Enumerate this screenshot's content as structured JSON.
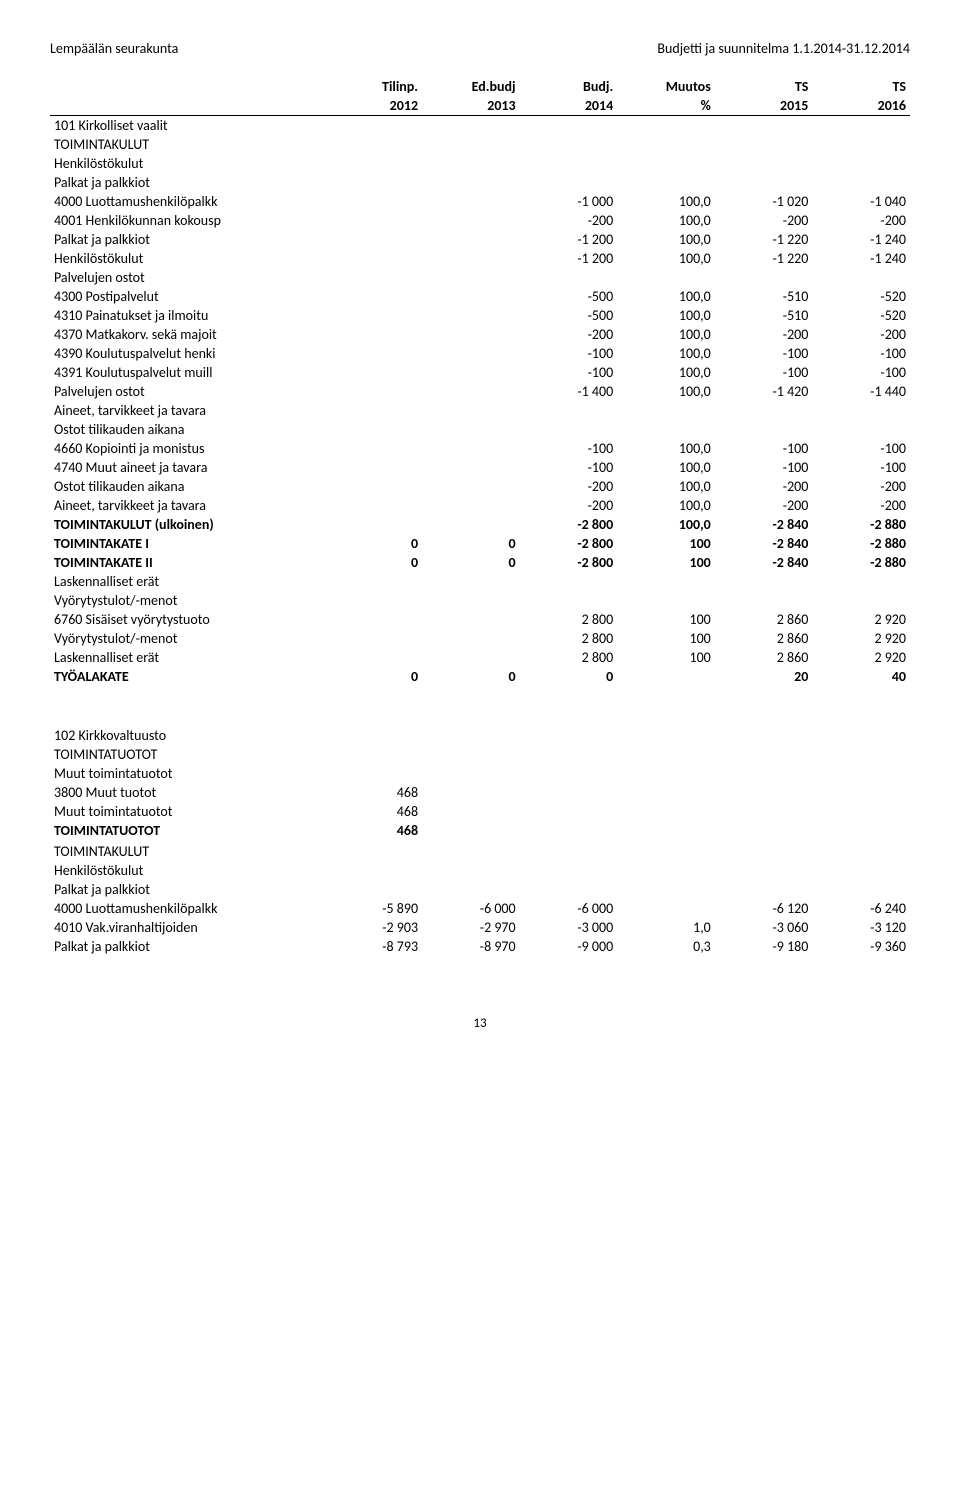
{
  "doc": {
    "org": "Lempäälän seurakunta",
    "title": "Budjetti ja suunnitelma 1.1.2014-31.12.2014",
    "page": "13"
  },
  "columns": {
    "h1": [
      "Tilinp.",
      "Ed.budj",
      "Budj.",
      "Muutos",
      "TS",
      "TS"
    ],
    "h2": [
      "2012",
      "2013",
      "2014",
      "%",
      "2015",
      "2016"
    ]
  },
  "rows1": [
    {
      "label": "101 Kirkolliset vaalit",
      "vals": [
        "",
        "",
        "",
        "",
        "",
        ""
      ],
      "bold": false
    },
    {
      "label": "TOIMINTAKULUT",
      "vals": [
        "",
        "",
        "",
        "",
        "",
        ""
      ]
    },
    {
      "label": "Henkilöstökulut",
      "vals": [
        "",
        "",
        "",
        "",
        "",
        ""
      ]
    },
    {
      "label": "Palkat ja palkkiot",
      "vals": [
        "",
        "",
        "",
        "",
        "",
        ""
      ]
    },
    {
      "label": "4000 Luottamushenkilöpalkk",
      "vals": [
        "",
        "",
        "-1 000",
        "100,0",
        "-1 020",
        "-1 040"
      ]
    },
    {
      "label": "4001 Henkilökunnan kokousp",
      "vals": [
        "",
        "",
        "-200",
        "100,0",
        "-200",
        "-200"
      ]
    },
    {
      "label": "Palkat ja palkkiot",
      "vals": [
        "",
        "",
        "-1 200",
        "100,0",
        "-1 220",
        "-1 240"
      ]
    },
    {
      "label": "Henkilöstökulut",
      "vals": [
        "",
        "",
        "-1 200",
        "100,0",
        "-1 220",
        "-1 240"
      ]
    },
    {
      "label": "Palvelujen ostot",
      "vals": [
        "",
        "",
        "",
        "",
        "",
        ""
      ]
    },
    {
      "label": "4300 Postipalvelut",
      "vals": [
        "",
        "",
        "-500",
        "100,0",
        "-510",
        "-520"
      ]
    },
    {
      "label": "4310 Painatukset ja ilmoitu",
      "vals": [
        "",
        "",
        "-500",
        "100,0",
        "-510",
        "-520"
      ]
    },
    {
      "label": "4370 Matkakorv. sekä majoit",
      "vals": [
        "",
        "",
        "-200",
        "100,0",
        "-200",
        "-200"
      ]
    },
    {
      "label": "4390 Koulutuspalvelut henki",
      "vals": [
        "",
        "",
        "-100",
        "100,0",
        "-100",
        "-100"
      ]
    },
    {
      "label": "4391 Koulutuspalvelut muill",
      "vals": [
        "",
        "",
        "-100",
        "100,0",
        "-100",
        "-100"
      ]
    },
    {
      "label": "Palvelujen ostot",
      "vals": [
        "",
        "",
        "-1 400",
        "100,0",
        "-1 420",
        "-1 440"
      ]
    },
    {
      "label": "Aineet, tarvikkeet ja tavara",
      "vals": [
        "",
        "",
        "",
        "",
        "",
        ""
      ]
    },
    {
      "label": "Ostot tilikauden aikana",
      "vals": [
        "",
        "",
        "",
        "",
        "",
        ""
      ]
    },
    {
      "label": "4660 Kopiointi ja monistus",
      "vals": [
        "",
        "",
        "-100",
        "100,0",
        "-100",
        "-100"
      ]
    },
    {
      "label": "4740 Muut aineet ja tavara",
      "vals": [
        "",
        "",
        "-100",
        "100,0",
        "-100",
        "-100"
      ]
    },
    {
      "label": "Ostot tilikauden aikana",
      "vals": [
        "",
        "",
        "-200",
        "100,0",
        "-200",
        "-200"
      ]
    },
    {
      "label": "Aineet, tarvikkeet ja tavara",
      "vals": [
        "",
        "",
        "-200",
        "100,0",
        "-200",
        "-200"
      ]
    },
    {
      "label": "TOIMINTAKULUT (ulkoinen)",
      "vals": [
        "",
        "",
        "-2 800",
        "100,0",
        "-2 840",
        "-2 880"
      ],
      "bold": true
    },
    {
      "label": "TOIMINTAKATE I",
      "vals": [
        "0",
        "0",
        "-2 800",
        "100",
        "-2 840",
        "-2 880"
      ],
      "bold": true
    },
    {
      "label": "TOIMINTAKATE II",
      "vals": [
        "0",
        "0",
        "-2 800",
        "100",
        "-2 840",
        "-2 880"
      ],
      "bold": true
    },
    {
      "label": "Laskennalliset erät",
      "vals": [
        "",
        "",
        "",
        "",
        "",
        ""
      ]
    },
    {
      "label": "Vyörytystulot/-menot",
      "vals": [
        "",
        "",
        "",
        "",
        "",
        ""
      ]
    },
    {
      "label": "6760 Sisäiset vyörytystuoto",
      "vals": [
        "",
        "",
        "2 800",
        "100",
        "2 860",
        "2 920"
      ]
    },
    {
      "label": "Vyörytystulot/-menot",
      "vals": [
        "",
        "",
        "2 800",
        "100",
        "2 860",
        "2 920"
      ]
    },
    {
      "label": "Laskennalliset erät",
      "vals": [
        "",
        "",
        "2 800",
        "100",
        "2 860",
        "2 920"
      ]
    },
    {
      "label": "TYÖALAKATE",
      "vals": [
        "0",
        "0",
        "0",
        "",
        "20",
        "40"
      ],
      "bold": true
    }
  ],
  "rows2": [
    {
      "label": "102 Kirkkovaltuusto",
      "vals": [
        "",
        "",
        "",
        "",
        "",
        ""
      ]
    },
    {
      "label": "TOIMINTATUOTOT",
      "vals": [
        "",
        "",
        "",
        "",
        "",
        ""
      ]
    },
    {
      "label": "Muut toimintatuotot",
      "vals": [
        "",
        "",
        "",
        "",
        "",
        ""
      ]
    },
    {
      "label": "3800 Muut tuotot",
      "vals": [
        "468",
        "",
        "",
        "",
        "",
        ""
      ]
    },
    {
      "label": "Muut toimintatuotot",
      "vals": [
        "468",
        "",
        "",
        "",
        "",
        ""
      ]
    },
    {
      "label": "TOIMINTATUOTOT",
      "vals": [
        "468",
        "",
        "",
        "",
        "",
        ""
      ],
      "bold": true
    },
    {
      "label": "",
      "vals": [
        "",
        "",
        "",
        "",
        "",
        ""
      ]
    },
    {
      "label": "TOIMINTAKULUT",
      "vals": [
        "",
        "",
        "",
        "",
        "",
        ""
      ]
    },
    {
      "label": "Henkilöstökulut",
      "vals": [
        "",
        "",
        "",
        "",
        "",
        ""
      ]
    },
    {
      "label": "Palkat ja palkkiot",
      "vals": [
        "",
        "",
        "",
        "",
        "",
        ""
      ]
    },
    {
      "label": "4000 Luottamushenkilöpalkk",
      "vals": [
        "-5 890",
        "-6 000",
        "-6 000",
        "",
        "-6 120",
        "-6 240"
      ]
    },
    {
      "label": "4010 Vak.viranhaltijoiden",
      "vals": [
        "-2 903",
        "-2 970",
        "-3 000",
        "1,0",
        "-3 060",
        "-3 120"
      ]
    },
    {
      "label": "Palkat ja palkkiot",
      "vals": [
        "-8 793",
        "-8 970",
        "-9 000",
        "0,3",
        "-9 180",
        "-9 360"
      ]
    }
  ]
}
